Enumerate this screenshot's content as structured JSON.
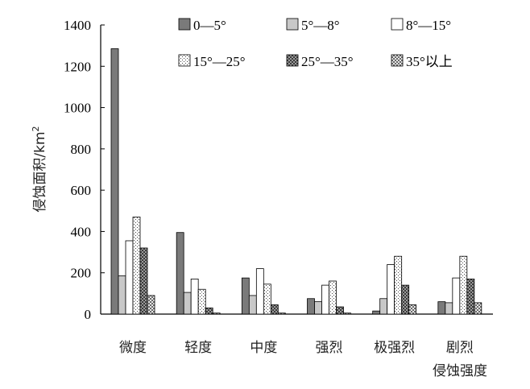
{
  "chart_data": {
    "type": "bar",
    "title": "",
    "xlabel": "侵蚀强度",
    "ylabel": "侵蚀面积/km",
    "ylabel_sup": "2",
    "ylim": [
      0,
      1400
    ],
    "yticks": [
      0,
      200,
      400,
      600,
      800,
      1000,
      1200,
      1400
    ],
    "grid": false,
    "legend_position": "top",
    "categories": [
      "微度",
      "轻度",
      "中度",
      "强烈",
      "极强烈",
      "剧烈"
    ],
    "series": [
      {
        "name": "0—5°",
        "pattern": "dark",
        "values": [
          1285,
          395,
          175,
          75,
          15,
          60
        ]
      },
      {
        "name": "5°—8°",
        "pattern": "light",
        "values": [
          185,
          105,
          90,
          60,
          75,
          55
        ]
      },
      {
        "name": "8°—15°",
        "pattern": "white",
        "values": [
          355,
          170,
          220,
          140,
          240,
          175
        ]
      },
      {
        "name": "15°—25°",
        "pattern": "dots",
        "values": [
          470,
          120,
          145,
          160,
          280,
          280
        ]
      },
      {
        "name": "25°—35°",
        "pattern": "cross",
        "values": [
          320,
          30,
          45,
          35,
          140,
          170
        ]
      },
      {
        "name": "35°以上",
        "pattern": "checker",
        "values": [
          90,
          5,
          5,
          5,
          45,
          55
        ]
      }
    ]
  }
}
